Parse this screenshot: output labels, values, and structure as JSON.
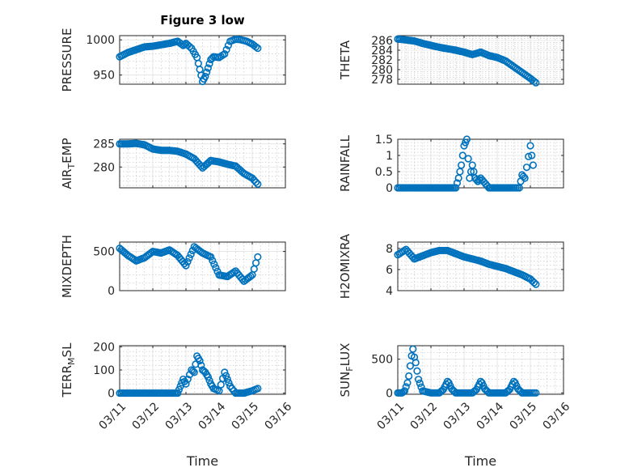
{
  "chart_data": [
    {
      "type": "scatter",
      "title": "Figure 3 low",
      "ylabel": "PRESSURE",
      "ylim": [
        937,
        1006
      ],
      "yticks": [
        950,
        1000
      ],
      "xlim": [
        "03/11",
        "03/16"
      ],
      "grid": true,
      "x": [
        "03/11 00:00",
        "03/11 06:00",
        "03/11 12:00",
        "03/11 18:00",
        "03/12 00:00",
        "03/12 06:00",
        "03/12 12:00",
        "03/12 18:00",
        "03/12 22:00",
        "03/13 00:00",
        "03/13 04:00",
        "03/13 08:00",
        "03/13 10:00",
        "03/13 12:00",
        "03/13 14:00",
        "03/13 16:00",
        "03/13 18:00",
        "03/13 20:00",
        "03/14 00:00",
        "03/14 04:00",
        "03/14 08:00",
        "03/14 12:00",
        "03/14 16:00",
        "03/14 20:00",
        "03/15 00:00",
        "03/15 04:00"
      ],
      "y": [
        976,
        982,
        986,
        990,
        991,
        993,
        995,
        998,
        992,
        995,
        988,
        975,
        958,
        941,
        948,
        960,
        972,
        976,
        975,
        980,
        998,
        1001,
        1000,
        998,
        994,
        988
      ],
      "color": "#0072bd"
    },
    {
      "type": "scatter",
      "ylabel": "THETA",
      "ylim": [
        277,
        287
      ],
      "yticks": [
        278,
        280,
        282,
        284,
        286
      ],
      "xlim": [
        "03/11",
        "03/16"
      ],
      "grid": true,
      "x": [
        "03/11 00:00",
        "03/11 06:00",
        "03/11 12:00",
        "03/11 18:00",
        "03/12 00:00",
        "03/12 06:00",
        "03/12 12:00",
        "03/12 18:00",
        "03/13 00:00",
        "03/13 06:00",
        "03/13 12:00",
        "03/13 18:00",
        "03/14 00:00",
        "03/14 06:00",
        "03/14 12:00",
        "03/14 18:00",
        "03/15 00:00",
        "03/15 04:00"
      ],
      "y": [
        286.3,
        286.1,
        285.9,
        285.4,
        285.0,
        284.6,
        284.3,
        284.0,
        283.6,
        283.1,
        283.6,
        282.9,
        282.5,
        281.8,
        280.6,
        279.4,
        278.2,
        277.3
      ],
      "color": "#0072bd"
    },
    {
      "type": "scatter",
      "ylabel": "AIR_TEMP",
      "ylim": [
        275.5,
        286
      ],
      "yticks": [
        280,
        285
      ],
      "xlim": [
        "03/11",
        "03/16"
      ],
      "grid": true,
      "x": [
        "03/11 00:00",
        "03/11 06:00",
        "03/11 12:00",
        "03/11 18:00",
        "03/12 00:00",
        "03/12 06:00",
        "03/12 12:00",
        "03/12 18:00",
        "03/13 00:00",
        "03/13 06:00",
        "03/13 12:00",
        "03/13 18:00",
        "03/14 00:00",
        "03/14 06:00",
        "03/14 12:00",
        "03/14 18:00",
        "03/15 00:00",
        "03/15 04:00"
      ],
      "y": [
        285.0,
        285.0,
        285.1,
        284.8,
        283.9,
        283.6,
        283.6,
        283.4,
        282.8,
        281.8,
        279.8,
        281.4,
        281.1,
        280.6,
        280.2,
        278.6,
        277.6,
        276.3
      ],
      "color": "#0072bd"
    },
    {
      "type": "scatter",
      "ylabel": "RAINFALL",
      "ylim": [
        0,
        1.5
      ],
      "yticks": [
        0,
        0.5,
        1,
        1.5
      ],
      "xlim": [
        "03/11",
        "03/16"
      ],
      "grid": true,
      "x": [
        "03/11 00:00",
        "03/11 12:00",
        "03/12 00:00",
        "03/12 12:00",
        "03/12 18:00",
        "03/12 20:00",
        "03/12 22:00",
        "03/13 00:00",
        "03/13 02:00",
        "03/13 04:00",
        "03/13 06:00",
        "03/13 08:00",
        "03/13 10:00",
        "03/13 12:00",
        "03/13 18:00",
        "03/14 00:00",
        "03/14 12:00",
        "03/14 16:00",
        "03/14 18:00",
        "03/14 20:00",
        "03/15 00:00",
        "03/15 02:00"
      ],
      "y": [
        0,
        0,
        0,
        0,
        0,
        0.3,
        0.7,
        1.3,
        1.5,
        0.3,
        0.7,
        0.3,
        0.2,
        0.3,
        0,
        0,
        0,
        0,
        0.4,
        0.3,
        1.3,
        0.7
      ],
      "color": "#0072bd"
    },
    {
      "type": "scatter",
      "ylabel": "MIXDEPTH",
      "ylim": [
        0,
        620
      ],
      "yticks": [
        0,
        500
      ],
      "xlim": [
        "03/11",
        "03/16"
      ],
      "grid": true,
      "x": [
        "03/11 00:00",
        "03/11 06:00",
        "03/11 12:00",
        "03/11 18:00",
        "03/12 00:00",
        "03/12 06:00",
        "03/12 12:00",
        "03/12 18:00",
        "03/13 00:00",
        "03/13 06:00",
        "03/13 12:00",
        "03/13 18:00",
        "03/14 00:00",
        "03/14 06:00",
        "03/14 12:00",
        "03/14 18:00",
        "03/15 00:00",
        "03/15 04:00"
      ],
      "y": [
        540,
        450,
        380,
        420,
        500,
        480,
        520,
        450,
        320,
        560,
        480,
        430,
        200,
        180,
        250,
        120,
        200,
        430
      ],
      "color": "#0072bd"
    },
    {
      "type": "scatter",
      "ylabel": "H2OMIXRA",
      "ylim": [
        4,
        8.6
      ],
      "yticks": [
        4,
        6,
        8
      ],
      "xlim": [
        "03/11",
        "03/16"
      ],
      "grid": true,
      "x": [
        "03/11 00:00",
        "03/11 06:00",
        "03/11 12:00",
        "03/11 18:00",
        "03/12 00:00",
        "03/12 06:00",
        "03/12 12:00",
        "03/12 18:00",
        "03/13 00:00",
        "03/13 06:00",
        "03/13 12:00",
        "03/13 18:00",
        "03/14 00:00",
        "03/14 06:00",
        "03/14 12:00",
        "03/14 18:00",
        "03/15 00:00",
        "03/15 04:00"
      ],
      "y": [
        7.4,
        7.9,
        7.0,
        7.3,
        7.6,
        7.8,
        7.8,
        7.5,
        7.2,
        7.0,
        6.8,
        6.5,
        6.3,
        6.1,
        5.8,
        5.5,
        5.1,
        4.6
      ],
      "color": "#0072bd"
    },
    {
      "type": "scatter",
      "ylabel": "TERR_MSL",
      "ylim": [
        -5,
        205
      ],
      "yticks": [
        0,
        100,
        200
      ],
      "xlim": [
        "03/11",
        "03/16"
      ],
      "xticks": [
        "03/11",
        "03/12",
        "03/13",
        "03/14",
        "03/15",
        "03/16"
      ],
      "xlabel": "Time",
      "grid": true,
      "x": [
        "03/11 00:00",
        "03/11 12:00",
        "03/12 00:00",
        "03/12 12:00",
        "03/12 18:00",
        "03/12 20:00",
        "03/12 22:00",
        "03/13 00:00",
        "03/13 04:00",
        "03/13 06:00",
        "03/13 08:00",
        "03/13 10:00",
        "03/13 12:00",
        "03/13 14:00",
        "03/13 16:00",
        "03/13 18:00",
        "03/13 20:00",
        "03/14 00:00",
        "03/14 04:00",
        "03/14 06:00",
        "03/14 08:00",
        "03/14 12:00",
        "03/14 18:00",
        "03/15 00:00",
        "03/15 04:00"
      ],
      "y": [
        0,
        0,
        0,
        0,
        0,
        30,
        60,
        40,
        100,
        90,
        160,
        140,
        100,
        90,
        70,
        40,
        20,
        10,
        90,
        60,
        30,
        0,
        0,
        10,
        20
      ],
      "color": "#0072bd"
    },
    {
      "type": "scatter",
      "ylabel": "SUN_FLUX",
      "ylim": [
        -20,
        700
      ],
      "yticks": [
        0,
        500
      ],
      "xlim": [
        "03/11",
        "03/16"
      ],
      "xticks": [
        "03/11",
        "03/12",
        "03/13",
        "03/14",
        "03/15",
        "03/16"
      ],
      "xlabel": "Time",
      "grid": true,
      "x": [
        "03/11 00:00",
        "03/11 03:00",
        "03/11 05:00",
        "03/11 07:00",
        "03/11 08:00",
        "03/11 09:00",
        "03/11 10:00",
        "03/11 11:00",
        "03/11 12:00",
        "03/11 13:00",
        "03/11 15:00",
        "03/11 18:00",
        "03/12 00:00",
        "03/12 06:00",
        "03/12 09:00",
        "03/12 11:00",
        "03/12 12:00",
        "03/12 13:00",
        "03/12 15:00",
        "03/12 18:00",
        "03/13 00:00",
        "03/13 06:00",
        "03/13 09:00",
        "03/13 11:00",
        "03/13 12:00",
        "03/13 13:00",
        "03/13 15:00",
        "03/13 18:00",
        "03/14 00:00",
        "03/14 06:00",
        "03/14 09:00",
        "03/14 11:00",
        "03/14 12:00",
        "03/14 13:00",
        "03/14 15:00",
        "03/14 18:00",
        "03/15 00:00",
        "03/15 04:00"
      ],
      "y": [
        0,
        0,
        30,
        150,
        250,
        400,
        550,
        650,
        530,
        450,
        200,
        30,
        0,
        0,
        50,
        130,
        170,
        150,
        60,
        0,
        0,
        0,
        50,
        130,
        170,
        150,
        60,
        0,
        0,
        0,
        50,
        130,
        170,
        150,
        60,
        0,
        0,
        0
      ],
      "color": "#0072bd"
    }
  ]
}
